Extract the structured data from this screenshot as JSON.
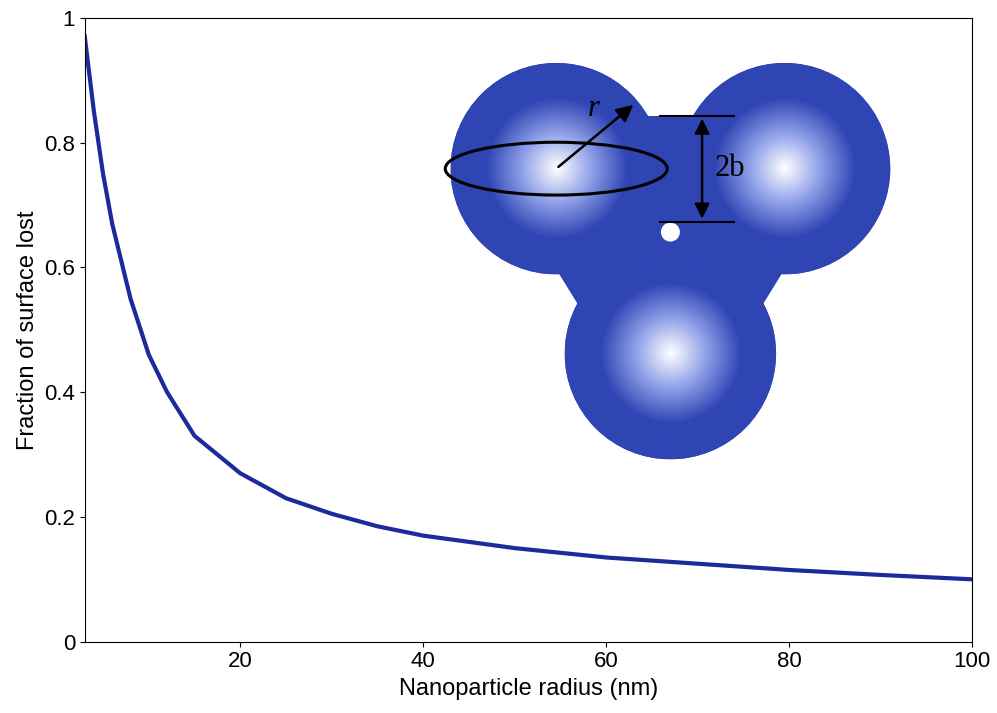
{
  "chart_data": {
    "type": "line",
    "x_label": "Nanoparticle radius (nm)",
    "y_label": "Fraction of surface lost",
    "x": [
      3,
      4,
      5,
      6,
      8,
      10,
      12,
      15,
      20,
      25,
      30,
      35,
      40,
      50,
      60,
      70,
      80,
      90,
      100
    ],
    "values": [
      0.97,
      0.85,
      0.75,
      0.67,
      0.55,
      0.46,
      0.4,
      0.33,
      0.27,
      0.23,
      0.205,
      0.185,
      0.17,
      0.15,
      0.135,
      0.125,
      0.115,
      0.107,
      0.1
    ],
    "color": "#1c2a9c",
    "xlim": [
      3,
      100
    ],
    "xticks": [
      20,
      40,
      60,
      80,
      100
    ],
    "ylim": [
      0,
      1
    ],
    "yticks": [
      0,
      0.2,
      0.4,
      0.6,
      0.8,
      1
    ],
    "grid": false,
    "annotations": [
      "r",
      "2b"
    ]
  }
}
